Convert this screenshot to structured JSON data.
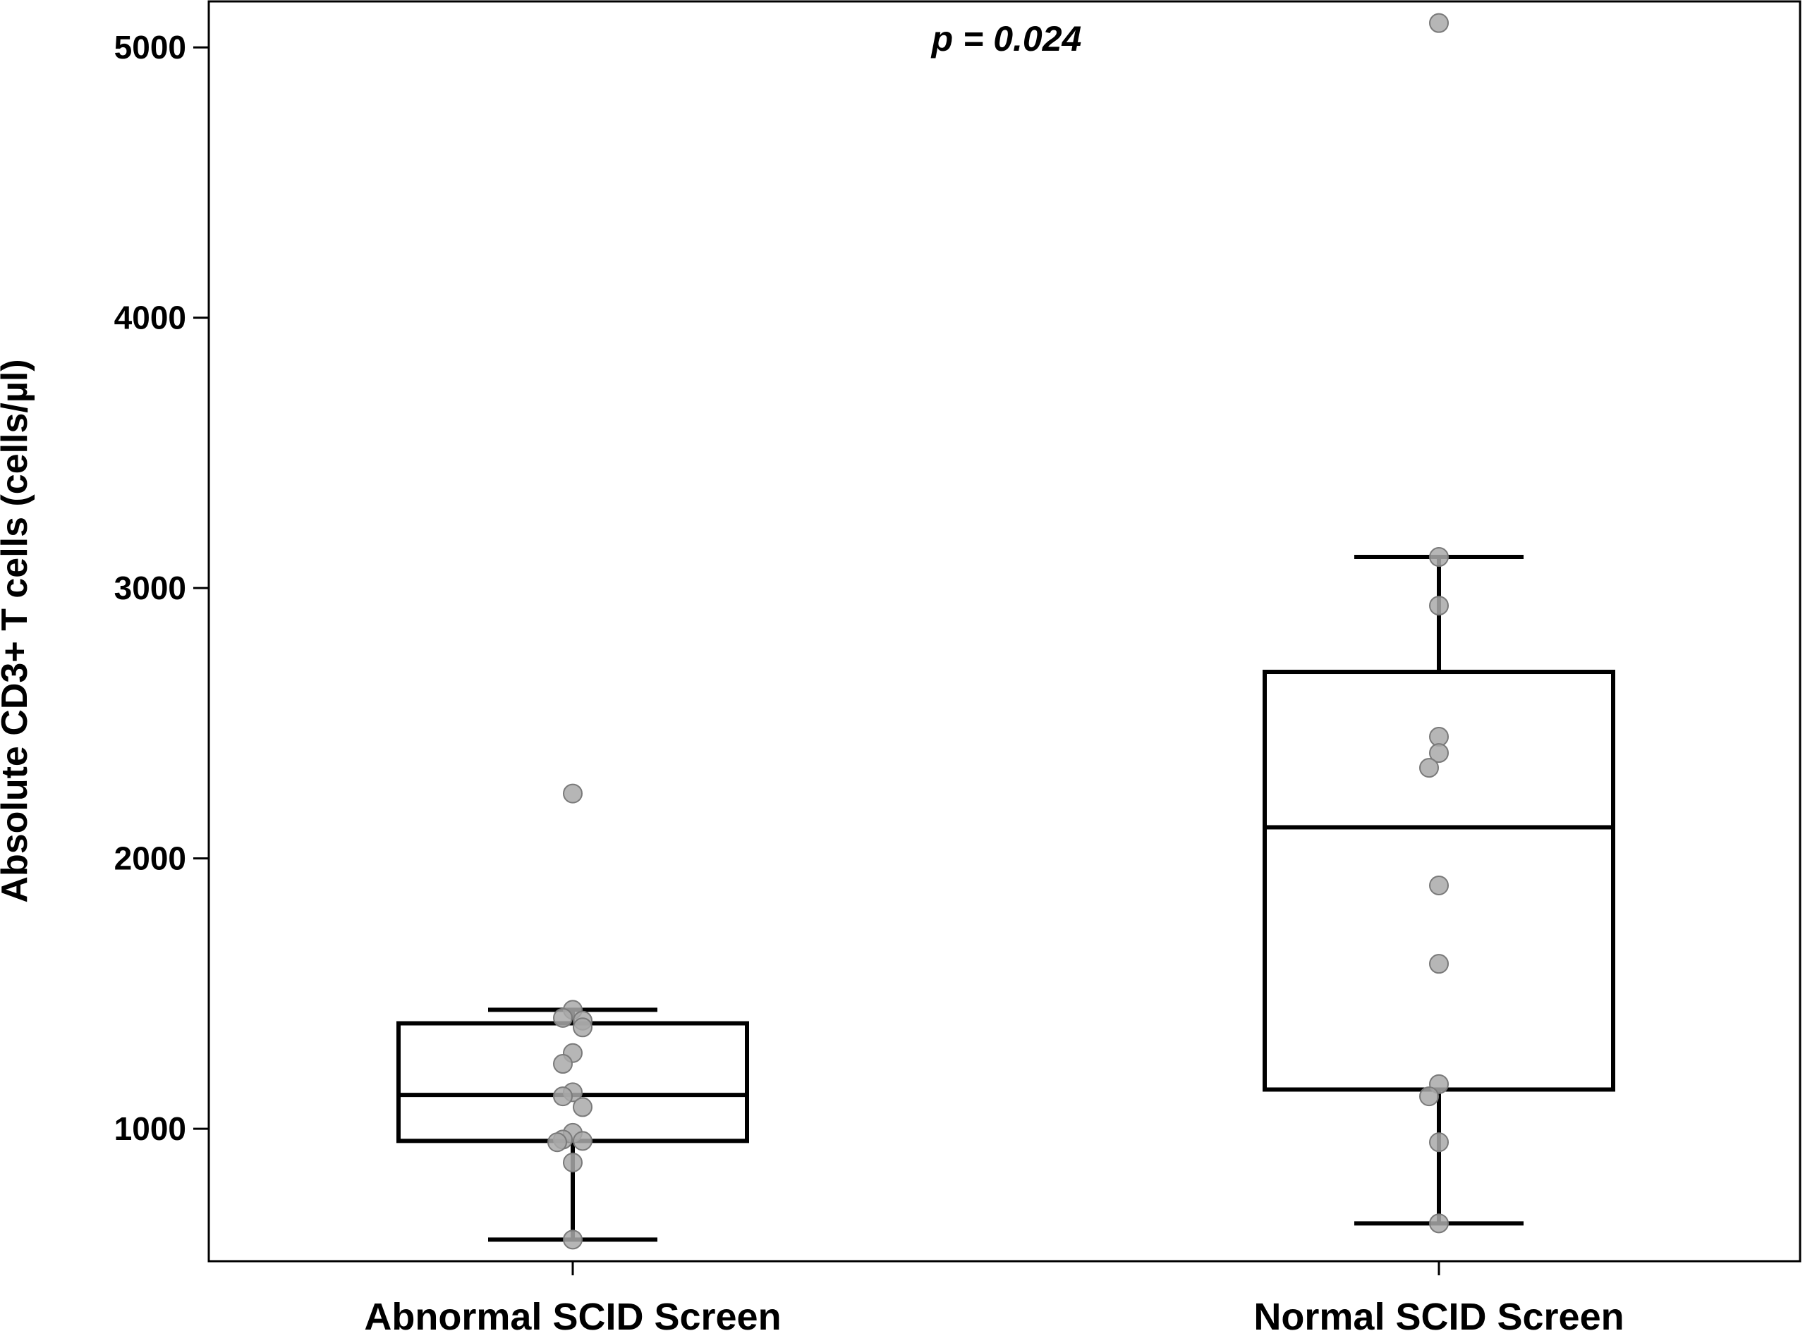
{
  "chart_data": {
    "type": "box",
    "title": "",
    "xlabel": "",
    "ylabel": "Absolute CD3+ T cells (cells/µl)",
    "ylim": [
      510,
      5170
    ],
    "yticks": [
      1000,
      2000,
      3000,
      4000,
      5000
    ],
    "annotation": "p = 0.024",
    "grid": false,
    "categories": [
      "Abnormal SCID Screen",
      "Normal SCID Screen"
    ],
    "boxes": [
      {
        "category": "Abnormal SCID Screen",
        "whisker_low": 590,
        "q1": 955,
        "median": 1125,
        "q3": 1390,
        "whisker_high": 1440,
        "points": [
          2240,
          1440,
          1410,
          1400,
          1375,
          1280,
          1240,
          1135,
          1120,
          1080,
          985,
          960,
          955,
          950,
          875,
          590
        ]
      },
      {
        "category": "Normal SCID Screen",
        "whisker_low": 650,
        "q1": 1145,
        "median": 2115,
        "q3": 2690,
        "whisker_high": 3115,
        "points": [
          5090,
          3115,
          2935,
          2450,
          2390,
          2335,
          1900,
          1610,
          1165,
          1120,
          950,
          650
        ]
      }
    ],
    "colors": {
      "box_stroke": "#000000",
      "point_fill": "#a9a9a9",
      "point_stroke": "#7a7a7a"
    }
  }
}
